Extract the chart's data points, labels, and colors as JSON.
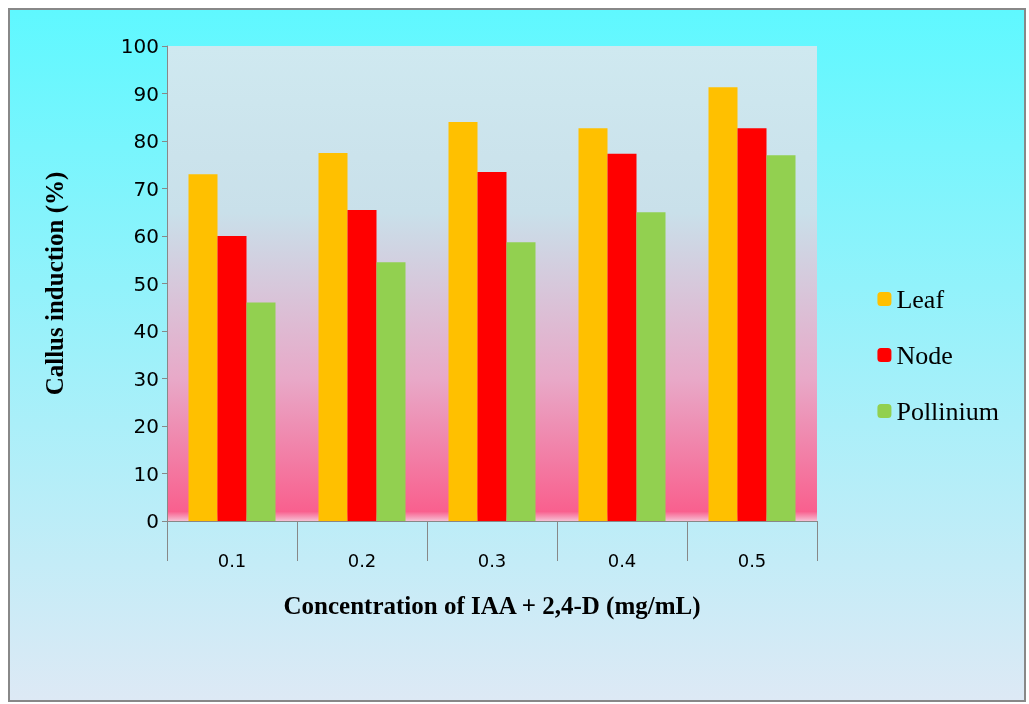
{
  "chart_data": {
    "type": "bar",
    "xlabel": "Concentration of IAA + 2,4-D (mg/mL)",
    "ylabel": "Callus induction (%)",
    "categories": [
      "0.1",
      "0.2",
      "0.3",
      "0.4",
      "0.5"
    ],
    "series": [
      {
        "name": "Leaf",
        "color": "#ffc000",
        "values": [
          73,
          77.5,
          84,
          82.7,
          91.3
        ]
      },
      {
        "name": "Node",
        "color": "#ff0000",
        "values": [
          60,
          65.5,
          73.5,
          77.3,
          82.7
        ]
      },
      {
        "name": "Pollinium",
        "color": "#92d050",
        "values": [
          46,
          54.5,
          58.7,
          65,
          77
        ]
      }
    ],
    "ylim": [
      0,
      100
    ],
    "yticks": [
      0,
      10,
      20,
      30,
      40,
      50,
      60,
      70,
      80,
      90,
      100
    ],
    "grid": false,
    "legend": "right"
  }
}
